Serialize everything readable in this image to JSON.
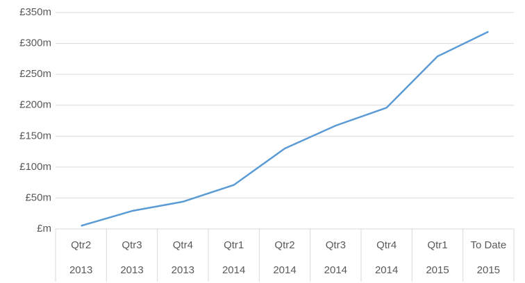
{
  "chart_data": {
    "type": "line",
    "categories": [
      "Qtr2",
      "Qtr3",
      "Qtr4",
      "Qtr1",
      "Qtr2",
      "Qtr3",
      "Qtr4",
      "Qtr1",
      "To Date"
    ],
    "category_groups": [
      "2013",
      "2013",
      "2013",
      "2014",
      "2014",
      "2014",
      "2014",
      "2015",
      "2015"
    ],
    "values": [
      5,
      29,
      44,
      71,
      130,
      167,
      196,
      279,
      319
    ],
    "color": "#5b9bd5",
    "ylim": [
      0,
      350
    ],
    "yticks": [
      {
        "value": 0,
        "label": "£m"
      },
      {
        "value": 50,
        "label": "£50m"
      },
      {
        "value": 100,
        "label": "£100m"
      },
      {
        "value": 150,
        "label": "£150m"
      },
      {
        "value": 200,
        "label": "£200m"
      },
      {
        "value": 250,
        "label": "£250m"
      },
      {
        "value": 300,
        "label": "£300m"
      },
      {
        "value": 350,
        "label": "£350m"
      }
    ],
    "grid": true
  }
}
